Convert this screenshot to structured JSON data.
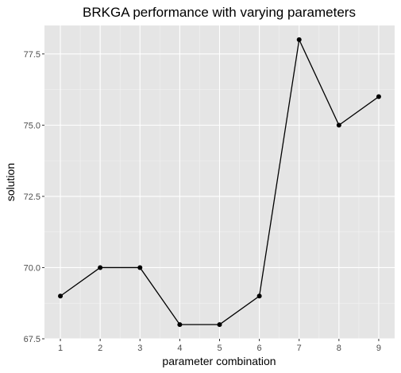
{
  "chart_data": {
    "type": "line",
    "title": "BRKGA performance with varying parameters",
    "xlabel": "parameter combination",
    "ylabel": "solution",
    "x": [
      1,
      2,
      3,
      4,
      5,
      6,
      7,
      8,
      9
    ],
    "values": [
      69,
      70,
      70,
      68,
      68,
      69,
      78,
      75,
      76
    ],
    "xlim": [
      0.6,
      9.4
    ],
    "ylim": [
      67.5,
      78.5
    ],
    "xticks": [
      1,
      2,
      3,
      4,
      5,
      6,
      7,
      8,
      9
    ],
    "yticks": [
      67.5,
      70.0,
      72.5,
      75.0,
      77.5
    ],
    "ytick_labels": [
      "67.5",
      "70.0",
      "72.5",
      "75.0",
      "77.5"
    ],
    "grid": true,
    "legend": "none"
  },
  "colors": {
    "panel_background": "#e5e5e5",
    "grid_major": "#ffffff",
    "grid_minor": "#f2f2f2",
    "line": "#000000",
    "point": "#000000"
  }
}
